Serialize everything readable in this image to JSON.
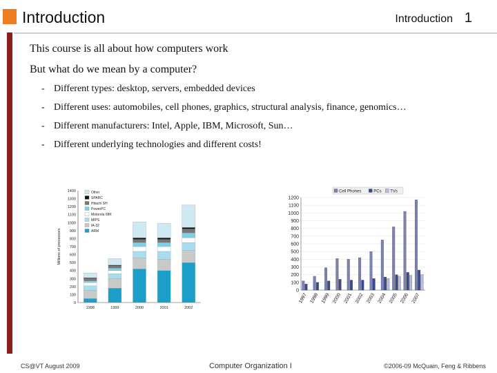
{
  "header": {
    "title": "Introduction",
    "right_label": "Introduction",
    "page": "1"
  },
  "content": {
    "line1": "This course is all about how computers work",
    "line2": "But what do we mean by a computer?",
    "bullets": [
      {
        "dash": "-",
        "text": "Different types: desktop, servers, embedded devices"
      },
      {
        "dash": "-",
        "text": "Different uses: automobiles, cell phones, graphics, structural analysis, finance, genomics…"
      },
      {
        "dash": "-",
        "text": "Different manufacturers: Intel, Apple, IBM, Microsoft, Sun…"
      },
      {
        "dash": "-",
        "text": "Different underlying technologies and different costs!"
      }
    ]
  },
  "chart_data": [
    {
      "type": "bar",
      "stacked": true,
      "ylabel": "Millions of processors",
      "ylim": [
        0,
        1400
      ],
      "ytick_labels": [
        "0",
        "100",
        "200",
        "300",
        "400",
        "500",
        "600",
        "700",
        "800",
        "900",
        "1000",
        "1100",
        "1200",
        "1300",
        "1400"
      ],
      "categories": [
        "1998",
        "1999",
        "2000",
        "2001",
        "2002"
      ],
      "legend_placement": "top-left",
      "series": [
        {
          "name": "ARM",
          "color": "#1b9ec7",
          "values": [
            50,
            180,
            420,
            400,
            500
          ]
        },
        {
          "name": "IA-32",
          "color": "#c9c9c9",
          "values": [
            100,
            120,
            140,
            140,
            150
          ]
        },
        {
          "name": "MIPS",
          "color": "#a8dcee",
          "values": [
            60,
            60,
            80,
            100,
            100
          ]
        },
        {
          "name": "Motorola 68K",
          "color": "#ffffff",
          "values": [
            40,
            40,
            60,
            60,
            60
          ]
        },
        {
          "name": "PowerPC",
          "color": "#7fcfe6",
          "values": [
            20,
            30,
            50,
            50,
            60
          ]
        },
        {
          "name": "Hitachi SH",
          "color": "#777777",
          "values": [
            30,
            30,
            40,
            40,
            50
          ]
        },
        {
          "name": "SPARC",
          "color": "#111111",
          "values": [
            10,
            10,
            20,
            20,
            20
          ]
        },
        {
          "name": "Other",
          "color": "#cfe9f3",
          "values": [
            60,
            80,
            200,
            180,
            280
          ]
        }
      ]
    },
    {
      "type": "bar",
      "ylim": [
        0,
        1200
      ],
      "ytick_labels": [
        "0",
        "100",
        "200",
        "300",
        "400",
        "500",
        "600",
        "700",
        "800",
        "900",
        "1000",
        "1100",
        "1200"
      ],
      "categories": [
        "1997",
        "1998",
        "1999",
        "2000",
        "2001",
        "2002",
        "2003",
        "2004",
        "2005",
        "2006",
        "2007"
      ],
      "legend_placement": "top",
      "series": [
        {
          "name": "Cell Phones",
          "color": "#7b82b8",
          "values": [
            120,
            180,
            290,
            410,
            400,
            420,
            500,
            650,
            820,
            1020,
            1170
          ]
        },
        {
          "name": "PCs",
          "color": "#3a4a8a",
          "values": [
            80,
            100,
            120,
            140,
            130,
            130,
            150,
            170,
            200,
            230,
            260
          ]
        },
        {
          "name": "TVs",
          "color": "#b8bde0",
          "values": [
            0,
            0,
            0,
            0,
            0,
            0,
            0,
            150,
            180,
            190,
            200
          ]
        }
      ]
    }
  ],
  "footer": {
    "left": "CS@VT August 2009",
    "middle": "Computer Organization I",
    "right": "©2006-09 McQuain, Feng & Ribbens"
  }
}
